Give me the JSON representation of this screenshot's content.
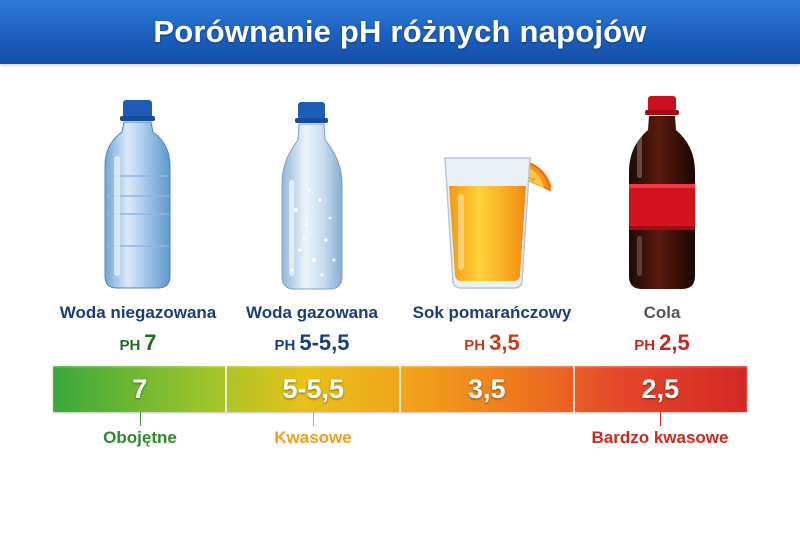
{
  "title": "Porównanie pH różnych napojów",
  "drinks": [
    {
      "name": "Woda niegazowana",
      "ph_prefix": "PH",
      "ph": "7",
      "icon": "still-water-bottle-icon",
      "color": "#1f6d1f"
    },
    {
      "name": "Woda gazowana",
      "ph_prefix": "PH",
      "ph": "5-5,5",
      "icon": "sparkling-water-bottle-icon",
      "color": "#1a3e7a"
    },
    {
      "name": "Sok pomarańczowy",
      "ph_prefix": "PH",
      "ph": "3,5",
      "icon": "orange-juice-glass-icon",
      "color": "#c83a1a"
    },
    {
      "name": "Cola",
      "ph_prefix": "PH",
      "ph": "2,5",
      "icon": "cola-bottle-icon",
      "color": "#c8261e"
    }
  ],
  "scale": {
    "segments": [
      "7",
      "5-5,5",
      "3,5",
      "2,5"
    ],
    "categories": [
      {
        "label": "Obojętne",
        "color": "#2f8a2a"
      },
      {
        "label": "Kwasowe",
        "color": "#f0a01a"
      },
      {
        "label": "Bardzo kwasowe",
        "color": "#cc2a20"
      }
    ]
  }
}
